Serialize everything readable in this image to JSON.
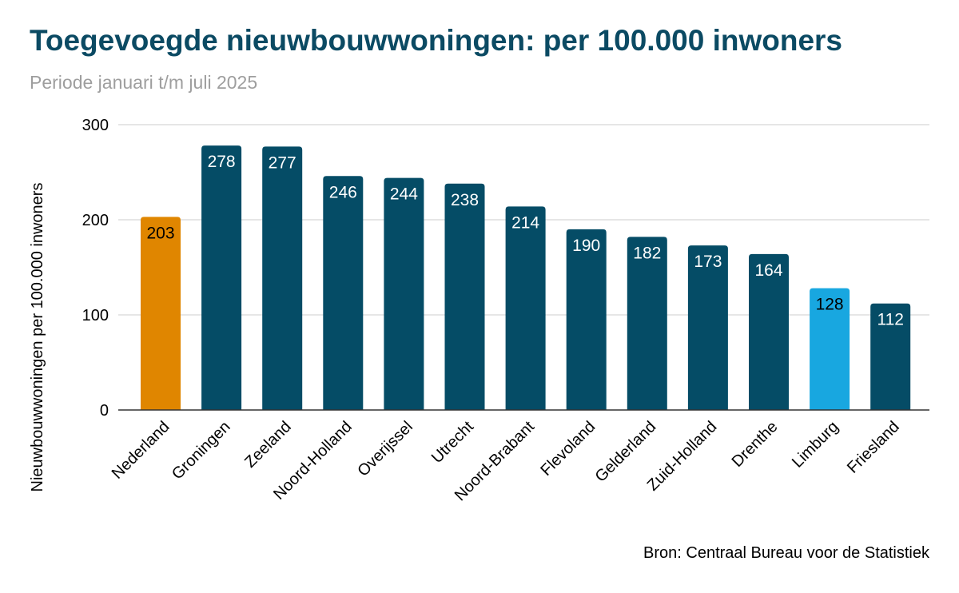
{
  "chart_data": {
    "type": "bar",
    "title": "Toegevoegde nieuwbouwwoningen: per 100.000 inwoners",
    "subtitle": "Periode januari t/m juli 2025",
    "ylabel": "Nieuwbouwwoningen per 100.000 inwoners",
    "xlabel": "",
    "source": "Bron: Centraal Bureau voor de Statistiek",
    "ylim": [
      0,
      300
    ],
    "yticks": [
      0,
      100,
      200,
      300
    ],
    "grid": true,
    "legend": "none",
    "categories": [
      "Nederland",
      "Groningen",
      "Zeeland",
      "Noord-Holland",
      "Overijssel",
      "Utrecht",
      "Noord-Brabant",
      "Flevoland",
      "Gelderland",
      "Zuid-Holland",
      "Drenthe",
      "Limburg",
      "Friesland"
    ],
    "values": [
      203,
      278,
      277,
      246,
      244,
      238,
      214,
      190,
      182,
      173,
      164,
      128,
      112
    ],
    "bar_colors": [
      "#e08600",
      "#054c66",
      "#054c66",
      "#054c66",
      "#054c66",
      "#054c66",
      "#054c66",
      "#054c66",
      "#054c66",
      "#054c66",
      "#054c66",
      "#18a7e0",
      "#054c66"
    ],
    "label_colors": [
      "#000000",
      "#ffffff",
      "#ffffff",
      "#ffffff",
      "#ffffff",
      "#ffffff",
      "#ffffff",
      "#ffffff",
      "#ffffff",
      "#ffffff",
      "#ffffff",
      "#000000",
      "#ffffff"
    ]
  }
}
